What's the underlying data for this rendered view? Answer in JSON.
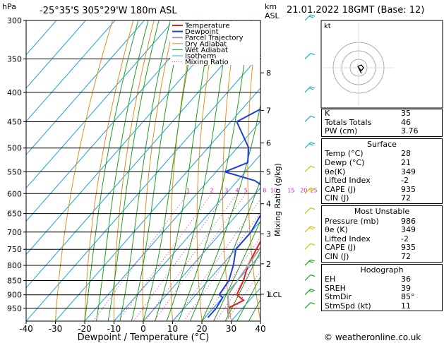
{
  "header": {
    "hpa_label": "hPa",
    "location": "-25°35'S 305°29'W 180m ASL",
    "km_label": "km",
    "asl_label": "ASL",
    "datetime": "21.01.2022 18GMT (Base: 12)"
  },
  "colors": {
    "temperature": "#e02020",
    "dewpoint": "#1a3fe0",
    "parcel": "#a0a0a0",
    "dry_adiabat": "#e09020",
    "wet_adiabat": "#20a020",
    "isotherm": "#20a0e0",
    "mixing_ratio": "#e020c0"
  },
  "chart_data": {
    "type": "line",
    "title": "",
    "xlabel": "Dewpoint / Temperature (°C)",
    "ylabel": "",
    "right_axis_label": "Mixing Ratio (g/kg)",
    "x_ticks": [
      -40,
      -30,
      -20,
      -10,
      0,
      10,
      20,
      30,
      40
    ],
    "xlim": [
      -40,
      40
    ],
    "pressure_levels": [
      300,
      350,
      400,
      450,
      500,
      550,
      600,
      650,
      700,
      750,
      800,
      850,
      900,
      950
    ],
    "ylim": [
      300,
      1000
    ],
    "km_ticks": [
      {
        "km": "1",
        "p": 898
      },
      {
        "km": "2",
        "p": 795
      },
      {
        "km": "3",
        "p": 705
      },
      {
        "km": "4",
        "p": 625
      },
      {
        "km": "5",
        "p": 550
      },
      {
        "km": "6",
        "p": 490
      },
      {
        "km": "7",
        "p": 430
      },
      {
        "km": "8",
        "p": 370
      }
    ],
    "lcl": {
      "label": "LCL",
      "p": 898
    },
    "mixing_ratio_labels": [
      "1",
      "2",
      "3",
      "4",
      "5",
      "8",
      "10",
      "15",
      "20",
      "25"
    ],
    "legend": [
      "Temperature",
      "Dewpoint",
      "Parcel Trajectory",
      "Dry Adiabat",
      "Wet Adiabat",
      "Isotherm",
      "Mixing Ratio"
    ],
    "series": [
      {
        "name": "Temperature",
        "points": [
          [
            28,
            986
          ],
          [
            25,
            950
          ],
          [
            28,
            920
          ],
          [
            24,
            900
          ],
          [
            22,
            850
          ],
          [
            19,
            800
          ],
          [
            17,
            750
          ],
          [
            15,
            700
          ],
          [
            11,
            650
          ],
          [
            8,
            600
          ],
          [
            6,
            550
          ],
          [
            4,
            500
          ],
          [
            2,
            460
          ],
          [
            -2,
            420
          ],
          [
            -6,
            380
          ],
          [
            -10,
            350
          ],
          [
            -20,
            300
          ]
        ]
      },
      {
        "name": "Dewpoint",
        "points": [
          [
            21,
            986
          ],
          [
            21,
            950
          ],
          [
            20,
            910
          ],
          [
            18,
            900
          ],
          [
            17,
            850
          ],
          [
            14,
            800
          ],
          [
            10,
            750
          ],
          [
            10,
            700
          ],
          [
            8,
            650
          ],
          [
            6,
            600
          ],
          [
            -4,
            570
          ],
          [
            -17,
            550
          ],
          [
            -12,
            530
          ],
          [
            -16,
            500
          ],
          [
            -28,
            450
          ],
          [
            -20,
            410
          ],
          [
            -22,
            400
          ],
          [
            -18,
            395
          ],
          [
            -25,
            380
          ],
          [
            -35,
            350
          ],
          [
            -28,
            330
          ],
          [
            -25,
            300
          ]
        ]
      },
      {
        "name": "Parcel Trajectory",
        "points": [
          [
            28,
            986
          ],
          [
            21,
            900
          ],
          [
            20,
            850
          ],
          [
            19,
            800
          ],
          [
            18,
            750
          ],
          [
            17,
            700
          ],
          [
            16,
            650
          ],
          [
            15,
            600
          ],
          [
            14,
            550
          ],
          [
            13,
            500
          ],
          [
            11,
            450
          ],
          [
            9,
            400
          ],
          [
            5,
            350
          ],
          [
            0,
            300
          ]
        ]
      }
    ]
  },
  "hodograph": {
    "label": "kt"
  },
  "indices": {
    "rows": [
      {
        "label": "K",
        "value": "35"
      },
      {
        "label": "Totals Totals",
        "value": "46"
      },
      {
        "label": "PW (cm)",
        "value": "3.76"
      }
    ]
  },
  "surface": {
    "title": "Surface",
    "rows": [
      {
        "label": "Temp (°C)",
        "value": "28"
      },
      {
        "label": "Dewp (°C)",
        "value": "21"
      },
      {
        "label": "θe(K)",
        "value": "349"
      },
      {
        "label": "Lifted Index",
        "value": "-2"
      },
      {
        "label": "CAPE (J)",
        "value": "935"
      },
      {
        "label": "CIN (J)",
        "value": "72"
      }
    ]
  },
  "most_unstable": {
    "title": "Most Unstable",
    "rows": [
      {
        "label": "Pressure (mb)",
        "value": "986"
      },
      {
        "label": "θe (K)",
        "value": "349"
      },
      {
        "label": "Lifted Index",
        "value": "-2"
      },
      {
        "label": "CAPE (J)",
        "value": "935"
      },
      {
        "label": "CIN (J)",
        "value": "72"
      }
    ]
  },
  "hodograph_table": {
    "title": "Hodograph",
    "rows": [
      {
        "label": "EH",
        "value": "36"
      },
      {
        "label": "SREH",
        "value": "39"
      },
      {
        "label": "StmDir",
        "value": "85°"
      },
      {
        "label": "StmSpd (kt)",
        "value": "11"
      }
    ]
  },
  "footer": {
    "credit": "© weatheronline.co.uk"
  }
}
